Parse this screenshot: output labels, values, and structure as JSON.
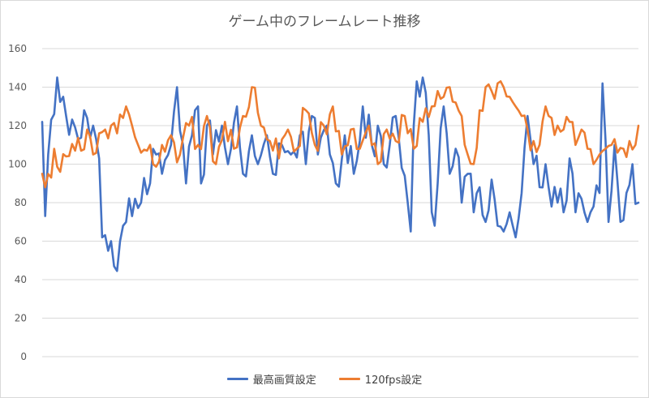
{
  "chart_data": {
    "type": "line",
    "title": "ゲーム中のフレームレート推移",
    "xlabel": "",
    "ylabel": "",
    "ylim": [
      0,
      160
    ],
    "yticks": [
      0,
      20,
      40,
      60,
      80,
      100,
      120,
      140,
      160
    ],
    "grid": true,
    "legend_position": "bottom",
    "x_count": 200,
    "series": [
      {
        "name": "最高画質設定",
        "color": "#4472c4",
        "anchors": [
          [
            0,
            122
          ],
          [
            1,
            73
          ],
          [
            2,
            105
          ],
          [
            4,
            126
          ],
          [
            5,
            145
          ],
          [
            7,
            135
          ],
          [
            8,
            125
          ],
          [
            12,
            113
          ],
          [
            14,
            128
          ],
          [
            15,
            124
          ],
          [
            17,
            120
          ],
          [
            18,
            113
          ],
          [
            19,
            103
          ],
          [
            20,
            62
          ],
          [
            22,
            55
          ],
          [
            24,
            47
          ],
          [
            26,
            60
          ],
          [
            27,
            68
          ],
          [
            30,
            73
          ],
          [
            33,
            80
          ],
          [
            36,
            90
          ],
          [
            38,
            105
          ],
          [
            40,
            95
          ],
          [
            43,
            110
          ],
          [
            45,
            140
          ],
          [
            47,
            110
          ],
          [
            48,
            90
          ],
          [
            50,
            115
          ],
          [
            52,
            130
          ],
          [
            53,
            90
          ],
          [
            55,
            120
          ],
          [
            57,
            105
          ],
          [
            60,
            120
          ],
          [
            62,
            100
          ],
          [
            65,
            130
          ],
          [
            67,
            95
          ],
          [
            70,
            115
          ],
          [
            72,
            100
          ],
          [
            75,
            115
          ],
          [
            77,
            95
          ],
          [
            80,
            110
          ],
          [
            83,
            105
          ],
          [
            86,
            115
          ],
          [
            88,
            100
          ],
          [
            90,
            125
          ],
          [
            92,
            105
          ],
          [
            95,
            120
          ],
          [
            98,
            90
          ],
          [
            101,
            115
          ],
          [
            104,
            95
          ],
          [
            107,
            130
          ],
          [
            110,
            110
          ],
          [
            112,
            120
          ],
          [
            114,
            100
          ],
          [
            116,
            110
          ],
          [
            118,
            125
          ],
          [
            120,
            98
          ],
          [
            122,
            80
          ],
          [
            123,
            65
          ],
          [
            124,
            120
          ],
          [
            125,
            143
          ],
          [
            127,
            145
          ],
          [
            129,
            115
          ],
          [
            130,
            75
          ],
          [
            131,
            68
          ],
          [
            132,
            90
          ],
          [
            134,
            130
          ],
          [
            136,
            95
          ],
          [
            138,
            108
          ],
          [
            140,
            80
          ],
          [
            142,
            95
          ],
          [
            144,
            75
          ],
          [
            146,
            88
          ],
          [
            148,
            70
          ],
          [
            150,
            92
          ],
          [
            152,
            68
          ],
          [
            154,
            65
          ],
          [
            156,
            75
          ],
          [
            158,
            62
          ],
          [
            160,
            85
          ],
          [
            162,
            125
          ],
          [
            164,
            100
          ],
          [
            166,
            88
          ],
          [
            168,
            100
          ],
          [
            170,
            78
          ],
          [
            172,
            80
          ],
          [
            174,
            75
          ],
          [
            176,
            103
          ],
          [
            178,
            75
          ],
          [
            180,
            82
          ],
          [
            182,
            70
          ],
          [
            184,
            78
          ],
          [
            186,
            85
          ],
          [
            187,
            142
          ],
          [
            189,
            70
          ],
          [
            191,
            110
          ],
          [
            193,
            70
          ],
          [
            195,
            85
          ],
          [
            197,
            100
          ],
          [
            199,
            80
          ]
        ]
      },
      {
        "name": "120fps設定",
        "color": "#ed7d31",
        "anchors": [
          [
            0,
            95
          ],
          [
            1,
            88
          ],
          [
            3,
            93
          ],
          [
            4,
            108
          ],
          [
            6,
            96
          ],
          [
            8,
            104
          ],
          [
            11,
            107
          ],
          [
            13,
            107
          ],
          [
            15,
            118
          ],
          [
            17,
            105
          ],
          [
            19,
            116
          ],
          [
            21,
            118
          ],
          [
            23,
            120
          ],
          [
            25,
            116
          ],
          [
            27,
            124
          ],
          [
            28,
            130
          ],
          [
            30,
            120
          ],
          [
            32,
            110
          ],
          [
            35,
            107
          ],
          [
            37,
            100
          ],
          [
            40,
            110
          ],
          [
            43,
            115
          ],
          [
            46,
            105
          ],
          [
            49,
            120
          ],
          [
            52,
            110
          ],
          [
            55,
            125
          ],
          [
            58,
            100
          ],
          [
            61,
            122
          ],
          [
            64,
            108
          ],
          [
            67,
            125
          ],
          [
            70,
            140
          ],
          [
            73,
            120
          ],
          [
            76,
            112
          ],
          [
            79,
            103
          ],
          [
            82,
            118
          ],
          [
            85,
            108
          ],
          [
            88,
            128
          ],
          [
            91,
            110
          ],
          [
            94,
            120
          ],
          [
            97,
            130
          ],
          [
            100,
            105
          ],
          [
            103,
            118
          ],
          [
            106,
            108
          ],
          [
            109,
            120
          ],
          [
            112,
            100
          ],
          [
            115,
            118
          ],
          [
            118,
            112
          ],
          [
            121,
            125
          ],
          [
            124,
            108
          ],
          [
            127,
            122
          ],
          [
            130,
            130
          ],
          [
            132,
            138
          ],
          [
            134,
            135
          ],
          [
            136,
            140
          ],
          [
            138,
            132
          ],
          [
            140,
            125
          ],
          [
            142,
            105
          ],
          [
            144,
            100
          ],
          [
            146,
            128
          ],
          [
            148,
            140
          ],
          [
            150,
            138
          ],
          [
            152,
            142
          ],
          [
            154,
            140
          ],
          [
            156,
            135
          ],
          [
            158,
            130
          ],
          [
            160,
            125
          ],
          [
            162,
            118
          ],
          [
            164,
            112
          ],
          [
            166,
            110
          ],
          [
            168,
            130
          ],
          [
            170,
            124
          ],
          [
            172,
            120
          ],
          [
            174,
            118
          ],
          [
            176,
            122
          ],
          [
            178,
            110
          ],
          [
            180,
            118
          ],
          [
            182,
            108
          ],
          [
            184,
            100
          ],
          [
            186,
            105
          ],
          [
            188,
            108
          ],
          [
            190,
            110
          ],
          [
            192,
            106
          ],
          [
            194,
            108
          ],
          [
            196,
            112
          ],
          [
            198,
            110
          ],
          [
            199,
            120
          ]
        ]
      }
    ]
  }
}
